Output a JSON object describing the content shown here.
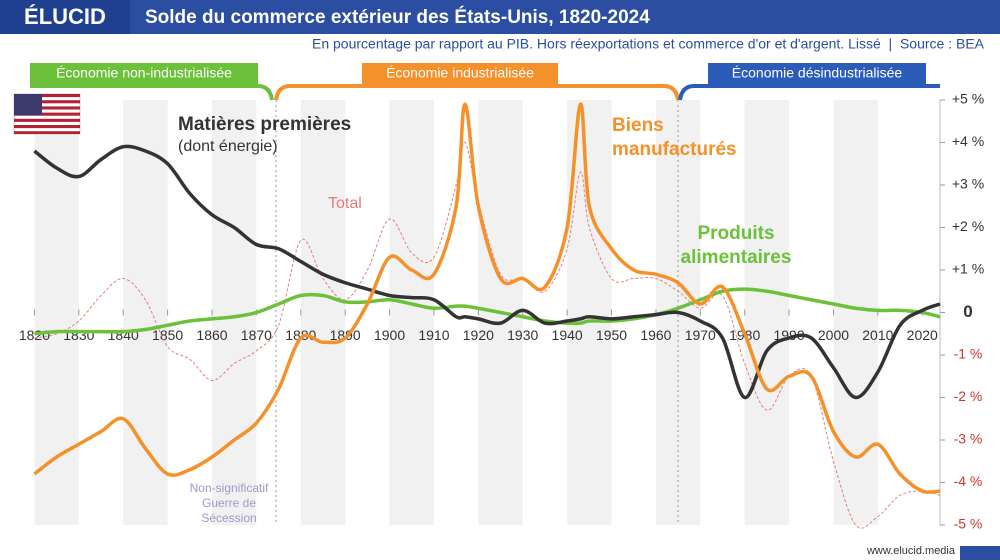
{
  "brand": "ÉLUCID",
  "footer": "www.elucid.media",
  "chart_data": {
    "type": "line",
    "title": "Solde du commerce extérieur des États-Unis, 1820-2024",
    "subtitle": "En pourcentage par rapport au PIB. Hors réexportations et commerce d'or et d'argent. Lissé  |  Source : BEA",
    "eras": [
      "Économie non-industrialisée",
      "Économie industrialisée",
      "Économie désindustrialisée"
    ],
    "annotations": {
      "raw_materials_note": "(dont énergie)",
      "civil_war": "Non-significatif Guerre de Sécession"
    },
    "x": [
      1820,
      1825,
      1830,
      1835,
      1840,
      1845,
      1850,
      1855,
      1860,
      1865,
      1870,
      1875,
      1880,
      1885,
      1890,
      1895,
      1900,
      1905,
      1910,
      1915,
      1917,
      1920,
      1925,
      1930,
      1935,
      1940,
      1943,
      1945,
      1950,
      1955,
      1960,
      1965,
      1970,
      1975,
      1980,
      1985,
      1990,
      1995,
      2000,
      2005,
      2010,
      2015,
      2020,
      2024
    ],
    "series": [
      {
        "name": "Total",
        "color": "#e87c7c",
        "dashed": true,
        "values": [
          -0.6,
          -0.5,
          -0.2,
          0.4,
          0.8,
          0.3,
          -0.8,
          -1.1,
          -1.6,
          -1.2,
          -0.9,
          -0.3,
          1.7,
          0.8,
          0.3,
          1.0,
          2.2,
          1.4,
          1.3,
          3.0,
          4.0,
          2.6,
          0.9,
          0.8,
          0.5,
          1.5,
          3.3,
          2.0,
          0.8,
          0.8,
          0.8,
          0.5,
          0.1,
          0.4,
          -1.2,
          -2.3,
          -1.5,
          -1.5,
          -3.5,
          -5.0,
          -4.8,
          -4.3,
          -4.2,
          -4.3
        ]
      },
      {
        "name": "Produits alimentaires",
        "color": "#6cc13a",
        "values": [
          -0.5,
          -0.45,
          -0.45,
          -0.45,
          -0.45,
          -0.4,
          -0.3,
          -0.2,
          -0.15,
          -0.1,
          0.0,
          0.2,
          0.4,
          0.4,
          0.25,
          0.25,
          0.3,
          0.2,
          0.1,
          0.15,
          0.15,
          0.1,
          0.0,
          -0.1,
          -0.2,
          -0.25,
          -0.25,
          -0.2,
          -0.2,
          -0.15,
          -0.05,
          0.1,
          0.3,
          0.5,
          0.55,
          0.5,
          0.4,
          0.3,
          0.2,
          0.1,
          0.05,
          0.05,
          0.0,
          -0.1
        ]
      },
      {
        "name": "Matières premières",
        "color": "#333333",
        "values": [
          3.8,
          3.4,
          3.2,
          3.6,
          3.9,
          3.8,
          3.5,
          2.8,
          2.3,
          2.0,
          1.6,
          1.5,
          1.2,
          0.9,
          0.7,
          0.55,
          0.4,
          0.35,
          0.3,
          -0.1,
          -0.1,
          -0.15,
          -0.25,
          0.05,
          -0.25,
          -0.2,
          -0.15,
          -0.1,
          -0.15,
          -0.1,
          -0.05,
          0.0,
          -0.2,
          -0.6,
          -2.0,
          -0.9,
          -0.6,
          -0.6,
          -1.3,
          -2.0,
          -1.4,
          -0.3,
          0.05,
          0.2
        ]
      },
      {
        "name": "Biens manufacturés",
        "color": "#f5912a",
        "values": [
          -3.8,
          -3.4,
          -3.1,
          -2.8,
          -2.5,
          -3.2,
          -3.8,
          -3.7,
          -3.4,
          -3.0,
          -2.6,
          -1.8,
          -0.6,
          -0.7,
          -0.6,
          0.2,
          1.3,
          1.0,
          0.9,
          2.5,
          4.9,
          2.5,
          0.8,
          0.8,
          0.6,
          2.0,
          4.9,
          2.5,
          1.5,
          1.0,
          0.9,
          0.7,
          0.2,
          0.6,
          -0.5,
          -1.8,
          -1.5,
          -1.5,
          -2.8,
          -3.4,
          -3.1,
          -3.8,
          -4.2,
          -4.2
        ]
      }
    ],
    "xlim": [
      1819,
      2024
    ],
    "xticks": [
      1820,
      1830,
      1840,
      1850,
      1860,
      1870,
      1880,
      1890,
      1900,
      1910,
      1920,
      1930,
      1940,
      1950,
      1960,
      1970,
      1980,
      1990,
      2000,
      2010,
      2020
    ],
    "ylim": [
      -5,
      5
    ],
    "yticks": [
      {
        "value": -5,
        "label": "-5 %"
      },
      {
        "value": -4,
        "label": "-4 %"
      },
      {
        "value": -3,
        "label": "-3 %"
      },
      {
        "value": -2,
        "label": "-2 %"
      },
      {
        "value": -1,
        "label": "-1 %"
      },
      0,
      {
        "value": 1,
        "label": "+1 %"
      },
      {
        "value": 2,
        "label": "+2 %"
      },
      {
        "value": 3,
        "label": "+3 %"
      },
      {
        "value": 4,
        "label": "+4 %"
      },
      {
        "value": 5,
        "label": "+5 %"
      }
    ],
    "grid": false
  }
}
